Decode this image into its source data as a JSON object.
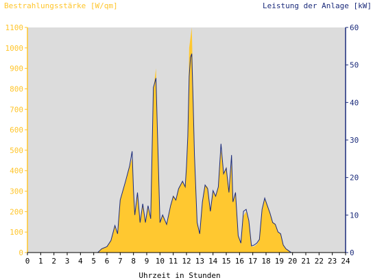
{
  "chart_data": {
    "type": "area",
    "left_axis_title": "Bestrahlungsstärke [W/qm]",
    "right_axis_title": "Leistung der Anlage [kW]",
    "xlabel": "Uhrzeit in Stunden",
    "xlim": [
      0,
      24
    ],
    "ylim_left": [
      0,
      1100
    ],
    "ylim_right": [
      0,
      60
    ],
    "x_ticks": [
      "0",
      "1",
      "2",
      "3",
      "4",
      "5",
      "6",
      "7",
      "8",
      "9",
      "10",
      "11",
      "12",
      "13",
      "14",
      "15",
      "16",
      "17",
      "18",
      "19",
      "20",
      "21",
      "22",
      "23",
      "24"
    ],
    "y_ticks_left": [
      "0",
      "100",
      "200",
      "300",
      "400",
      "500",
      "600",
      "700",
      "800",
      "900",
      "1000",
      "1100"
    ],
    "y_ticks_right": [
      "0",
      "10",
      "20",
      "30",
      "40",
      "50",
      "60"
    ],
    "grid": false,
    "colors": {
      "irradiance_fill": "#ffc830",
      "power_line": "#1a2a7a",
      "plot_background": "#dcdcdc",
      "left_axis": "#ffc52a",
      "right_axis": "#1a2a7a"
    },
    "series": [
      {
        "name": "Bestrahlungsstärke [W/qm]",
        "axis": "left",
        "x": [
          0,
          5.3,
          5.6,
          6.0,
          6.3,
          6.6,
          6.8,
          7.0,
          7.2,
          7.4,
          7.7,
          7.9,
          8.0,
          8.1,
          8.3,
          8.5,
          8.7,
          8.9,
          9.1,
          9.3,
          9.5,
          9.7,
          9.8,
          10.0,
          10.2,
          10.5,
          10.8,
          11.0,
          11.2,
          11.4,
          11.7,
          11.9,
          12.0,
          12.1,
          12.2,
          12.3,
          12.4,
          12.5,
          12.6,
          12.8,
          13.0,
          13.2,
          13.4,
          13.6,
          13.8,
          14.0,
          14.2,
          14.4,
          14.6,
          14.8,
          15.0,
          15.2,
          15.4,
          15.5,
          15.7,
          15.9,
          16.1,
          16.3,
          16.5,
          16.7,
          16.9,
          17.1,
          17.3,
          17.5,
          17.7,
          17.9,
          18.1,
          18.3,
          18.5,
          18.7,
          18.9,
          19.1,
          19.3,
          19.5,
          19.7,
          19.9,
          20.1,
          24
        ],
        "values": [
          0,
          0,
          20,
          30,
          60,
          130,
          90,
          250,
          300,
          340,
          420,
          460,
          300,
          180,
          280,
          150,
          230,
          150,
          220,
          160,
          800,
          900,
          600,
          150,
          180,
          140,
          230,
          280,
          260,
          310,
          350,
          320,
          420,
          580,
          1000,
          1050,
          1100,
          800,
          500,
          150,
          90,
          250,
          330,
          320,
          200,
          300,
          280,
          320,
          500,
          380,
          420,
          300,
          440,
          250,
          300,
          80,
          40,
          180,
          200,
          150,
          30,
          30,
          40,
          60,
          200,
          260,
          230,
          190,
          150,
          140,
          100,
          90,
          40,
          20,
          10,
          0,
          0,
          0
        ]
      },
      {
        "name": "Leistung der Anlage [kW]",
        "axis": "right",
        "x": [
          0,
          5.3,
          5.6,
          6.0,
          6.3,
          6.6,
          6.8,
          7.0,
          7.2,
          7.4,
          7.7,
          7.9,
          8.0,
          8.1,
          8.3,
          8.5,
          8.7,
          8.9,
          9.1,
          9.3,
          9.5,
          9.7,
          9.8,
          10.0,
          10.2,
          10.5,
          10.8,
          11.0,
          11.2,
          11.4,
          11.7,
          11.9,
          12.0,
          12.1,
          12.2,
          12.3,
          12.4,
          12.5,
          12.6,
          12.8,
          13.0,
          13.2,
          13.4,
          13.6,
          13.8,
          14.0,
          14.2,
          14.4,
          14.6,
          14.8,
          15.0,
          15.2,
          15.4,
          15.5,
          15.7,
          15.9,
          16.1,
          16.3,
          16.5,
          16.7,
          16.9,
          17.1,
          17.3,
          17.5,
          17.7,
          17.9,
          18.1,
          18.3,
          18.5,
          18.7,
          18.9,
          19.1,
          19.3,
          19.5,
          19.7,
          19.9,
          20.1,
          24
        ],
        "values": [
          0,
          0,
          1,
          1.6,
          3.2,
          7.2,
          5,
          14,
          16.5,
          19,
          23,
          27,
          16.5,
          10,
          16,
          8,
          13,
          8,
          12.5,
          9,
          44,
          46.5,
          33,
          8,
          10,
          7.5,
          12.5,
          15,
          14,
          17,
          19,
          17.5,
          23,
          31,
          47,
          52,
          53,
          40,
          26,
          8,
          5,
          13.5,
          18,
          17,
          11,
          16.5,
          15,
          17.5,
          29,
          21,
          22.5,
          16,
          26,
          13.5,
          16,
          4.5,
          2.5,
          11,
          11.5,
          8.5,
          1.8,
          2,
          2.5,
          3.5,
          11.5,
          14.5,
          12.5,
          10.5,
          8,
          7.5,
          5.5,
          5,
          2,
          1,
          0.5,
          0,
          0,
          0
        ]
      }
    ]
  }
}
